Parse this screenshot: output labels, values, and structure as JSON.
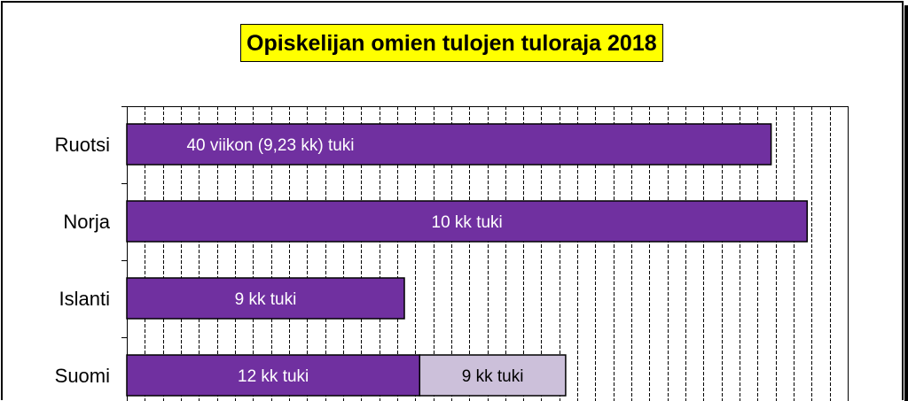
{
  "chart_data": {
    "type": "bar",
    "orientation": "horizontal",
    "stacked": true,
    "title": "Opiskelijan omien tulojen tuloraja 2018",
    "categories": [
      "Ruotsi",
      "Norja",
      "Islanti",
      "Suomi"
    ],
    "xlim": [
      0,
      800
    ],
    "grid": "vertical",
    "series": [
      {
        "color": "#7030a0",
        "values": [
          715,
          755,
          308,
          325
        ],
        "labels": [
          "40 viikon (9,23 kk) tuki",
          "10 kk tuki",
          "9 kk tuki",
          "12 kk tuki"
        ]
      },
      {
        "color": "#ccc0da",
        "values": [
          0,
          0,
          0,
          162
        ],
        "labels": [
          "",
          "",
          "",
          "9 kk tuki"
        ]
      }
    ]
  }
}
